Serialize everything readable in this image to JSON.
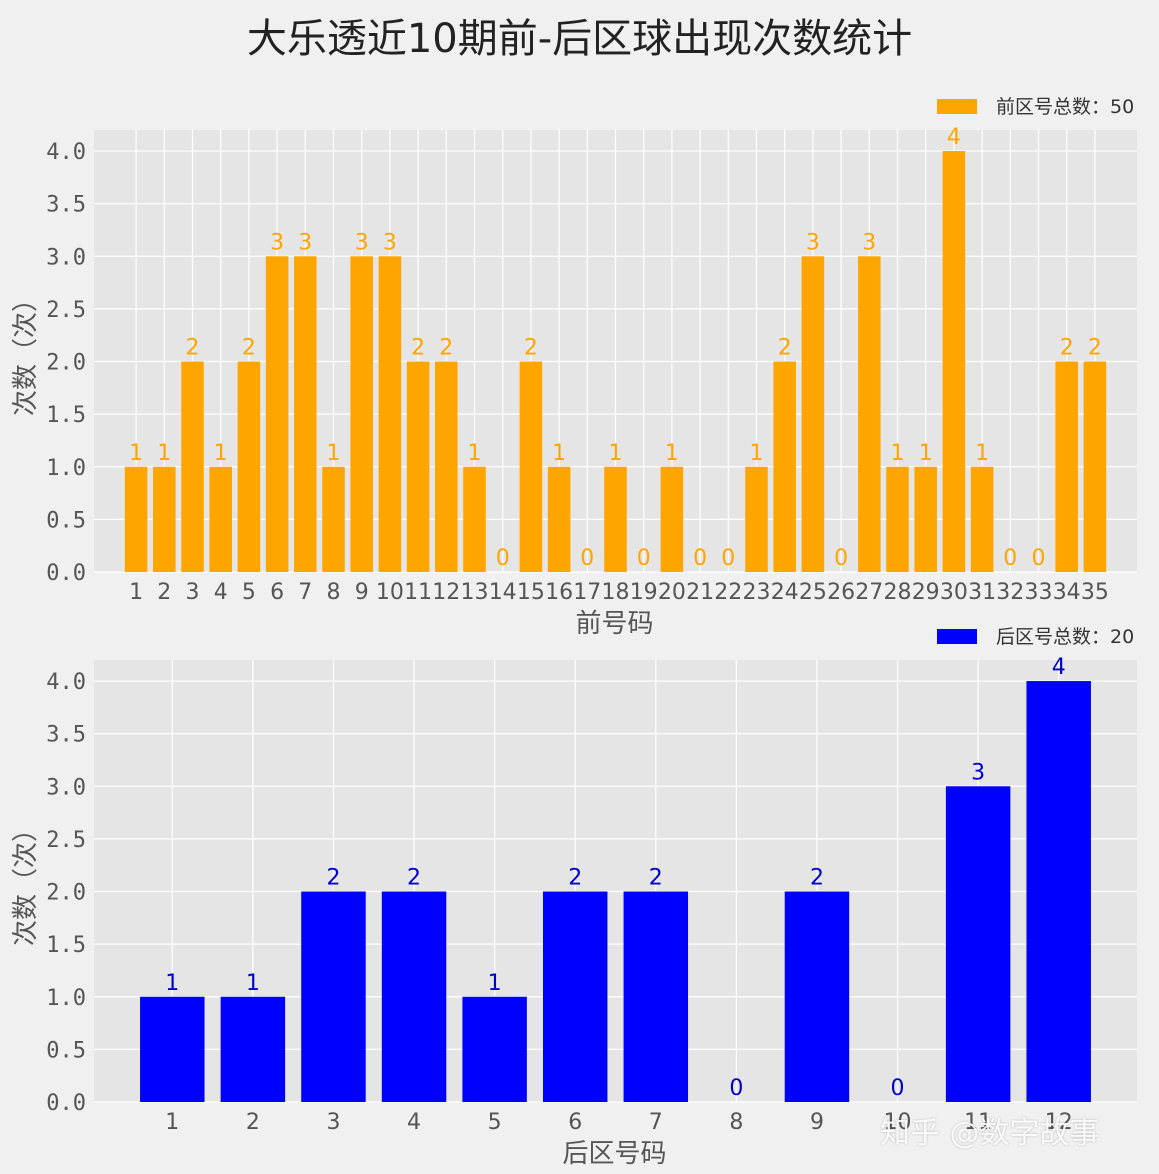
{
  "suptitle": "大乐透近10期前-后区球出现次数统计",
  "watermark": "知乎 @数字故事",
  "chart_data": [
    {
      "type": "bar",
      "name": "front",
      "categories": [
        "1",
        "2",
        "3",
        "4",
        "5",
        "6",
        "7",
        "8",
        "9",
        "10",
        "11",
        "12",
        "13",
        "14",
        "15",
        "16",
        "17",
        "18",
        "19",
        "20",
        "21",
        "22",
        "23",
        "24",
        "25",
        "26",
        "27",
        "28",
        "29",
        "30",
        "31",
        "32",
        "33",
        "34",
        "35"
      ],
      "values": [
        1,
        1,
        2,
        1,
        2,
        3,
        3,
        1,
        3,
        3,
        2,
        2,
        1,
        0,
        2,
        1,
        0,
        1,
        0,
        1,
        0,
        0,
        1,
        2,
        3,
        0,
        3,
        1,
        1,
        4,
        1,
        0,
        0,
        2,
        2
      ],
      "xlabel": "前号码",
      "ylabel": "次数（次）",
      "ylim": [
        0,
        4.2
      ],
      "yticks": [
        "0.0",
        "0.5",
        "1.0",
        "1.5",
        "2.0",
        "2.5",
        "3.0",
        "3.5",
        "4.0"
      ],
      "legend": "前区号总数：50",
      "legend_position": "top-right",
      "color": "#ffa500",
      "grid": true
    },
    {
      "type": "bar",
      "name": "back",
      "categories": [
        "1",
        "2",
        "3",
        "4",
        "5",
        "6",
        "7",
        "8",
        "9",
        "10",
        "11",
        "12"
      ],
      "values": [
        1,
        1,
        2,
        2,
        1,
        2,
        2,
        0,
        2,
        0,
        3,
        4
      ],
      "xlabel": "后区号码",
      "ylabel": "次数（次）",
      "ylim": [
        0,
        4.2
      ],
      "yticks": [
        "0.0",
        "0.5",
        "1.0",
        "1.5",
        "2.0",
        "2.5",
        "3.0",
        "3.5",
        "4.0"
      ],
      "legend": "后区号总数：20",
      "legend_position": "top-right",
      "color": "#0000ff",
      "label_color": "#0000cc",
      "grid": true
    }
  ]
}
